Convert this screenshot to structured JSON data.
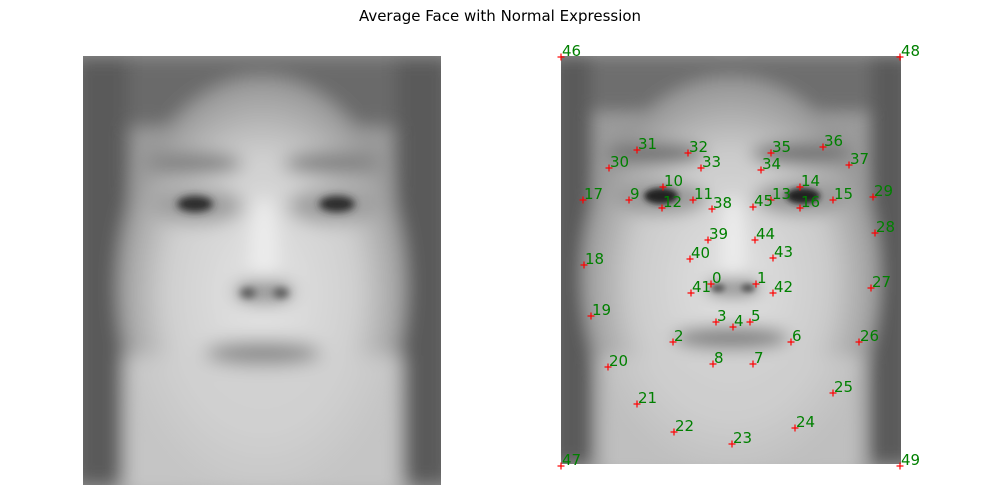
{
  "title": "Average Face with Normal Expression",
  "colors": {
    "marker": "#ff0000",
    "label": "#008000"
  },
  "left_image": {
    "name": "average-face",
    "annotated": false
  },
  "right_image": {
    "name": "average-face-annotated",
    "annotated": true,
    "landmarks": [
      {
        "id": "0"
      },
      {
        "id": "1"
      },
      {
        "id": "2"
      },
      {
        "id": "3"
      },
      {
        "id": "4"
      },
      {
        "id": "5"
      },
      {
        "id": "6"
      },
      {
        "id": "7"
      },
      {
        "id": "8"
      },
      {
        "id": "9"
      },
      {
        "id": "10"
      },
      {
        "id": "11"
      },
      {
        "id": "12"
      },
      {
        "id": "13"
      },
      {
        "id": "14"
      },
      {
        "id": "15"
      },
      {
        "id": "16"
      },
      {
        "id": "17"
      },
      {
        "id": "18"
      },
      {
        "id": "19"
      },
      {
        "id": "20"
      },
      {
        "id": "21"
      },
      {
        "id": "22"
      },
      {
        "id": "23"
      },
      {
        "id": "24"
      },
      {
        "id": "25"
      },
      {
        "id": "26"
      },
      {
        "id": "27"
      },
      {
        "id": "28"
      },
      {
        "id": "29"
      },
      {
        "id": "30"
      },
      {
        "id": "31"
      },
      {
        "id": "32"
      },
      {
        "id": "33"
      },
      {
        "id": "34"
      },
      {
        "id": "35"
      },
      {
        "id": "36"
      },
      {
        "id": "37"
      },
      {
        "id": "38"
      },
      {
        "id": "39"
      },
      {
        "id": "40"
      },
      {
        "id": "41"
      },
      {
        "id": "42"
      },
      {
        "id": "43"
      },
      {
        "id": "44"
      },
      {
        "id": "45"
      },
      {
        "id": "46"
      },
      {
        "id": "47"
      },
      {
        "id": "48"
      },
      {
        "id": "49"
      }
    ]
  }
}
